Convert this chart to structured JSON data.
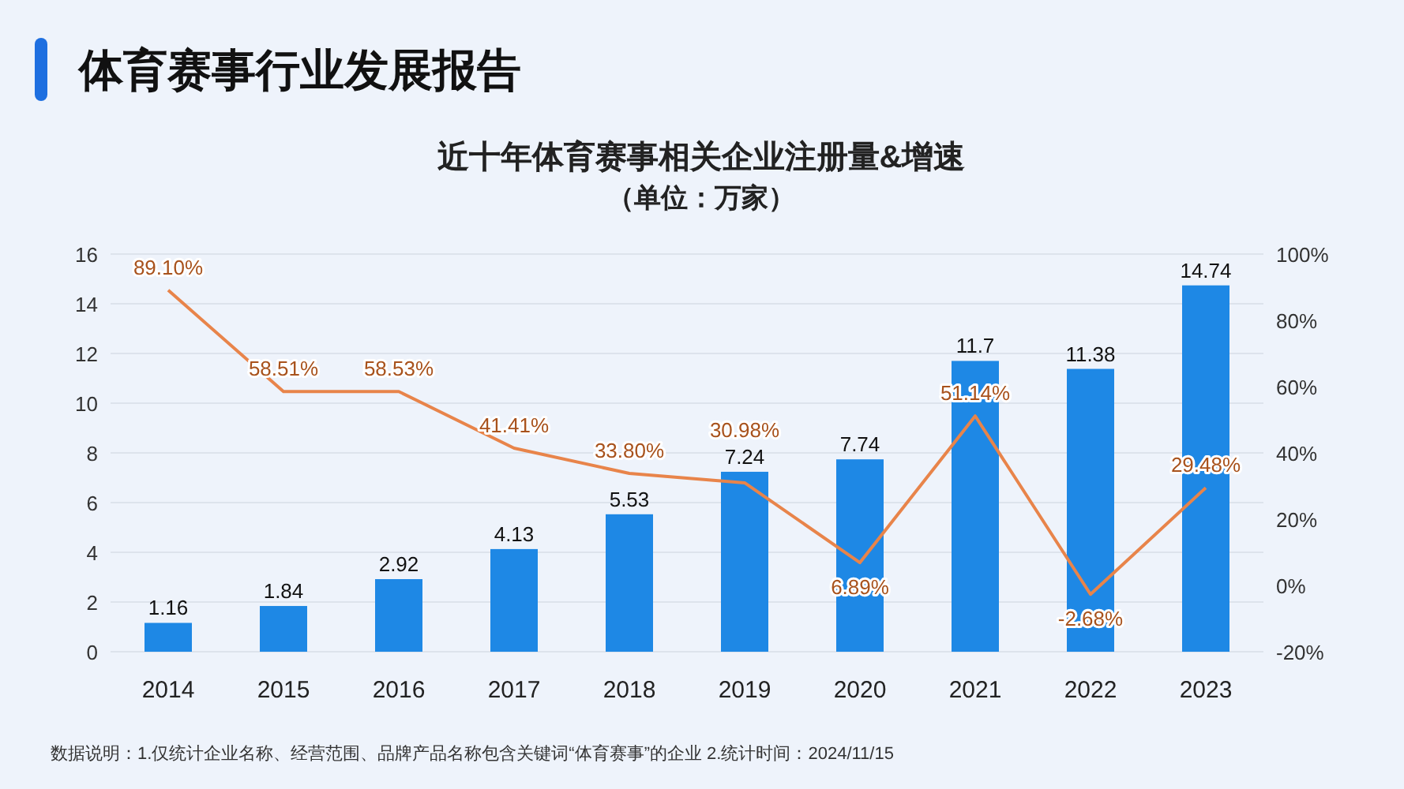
{
  "chart_data": {
    "type": "bar",
    "title": "体育赛事行业发展报告",
    "subtitle": "近十年体育赛事相关企业注册量&增速（单位：万家）",
    "categories": [
      "2014",
      "2015",
      "2016",
      "2017",
      "2018",
      "2019",
      "2020",
      "2021",
      "2022",
      "2023"
    ],
    "series": [
      {
        "color": "#1e88e5",
        "values": [
          1.16,
          1.84,
          2.92,
          4.13,
          5.53,
          7.24,
          7.74,
          11.7,
          11.38,
          14.74
        ],
        "value_labels": [
          "1.16",
          "1.84",
          "2.92",
          "4.13",
          "5.53",
          "7.24",
          "7.74",
          "11.7",
          "11.38",
          "14.74"
        ]
      },
      {
        "type": "line",
        "axis": "y2",
        "color": "#e8844a",
        "values": [
          89.1,
          58.51,
          58.53,
          41.41,
          33.8,
          30.98,
          6.89,
          51.14,
          -2.68,
          29.48
        ],
        "value_labels": [
          "89.10%",
          "58.51%",
          "58.53%",
          "41.41%",
          "33.80%",
          "30.98%",
          "6.89%",
          "51.14%",
          "-2.68%",
          "29.48%"
        ]
      }
    ],
    "ylim": [
      0,
      16
    ],
    "yticks": [
      0,
      2,
      4,
      6,
      8,
      10,
      12,
      14,
      16
    ],
    "y2lim": [
      -20,
      100
    ],
    "y2ticks": [
      {
        "value": -20,
        "label": "-20%"
      },
      {
        "value": 0,
        "label": "0%"
      },
      {
        "value": 20,
        "label": "20%"
      },
      {
        "value": 40,
        "label": "40%"
      },
      {
        "value": 60,
        "label": "60%"
      },
      {
        "value": 80,
        "label": "80%"
      },
      {
        "value": 100,
        "label": "100%"
      }
    ],
    "grid": "y",
    "legend": false,
    "annotations": [
      "数据说明：1.仅统计企业名称、经营范围、品牌产品名称包含关键词“体育赛事”的企业   2.统计时间：2024/11/15"
    ]
  }
}
